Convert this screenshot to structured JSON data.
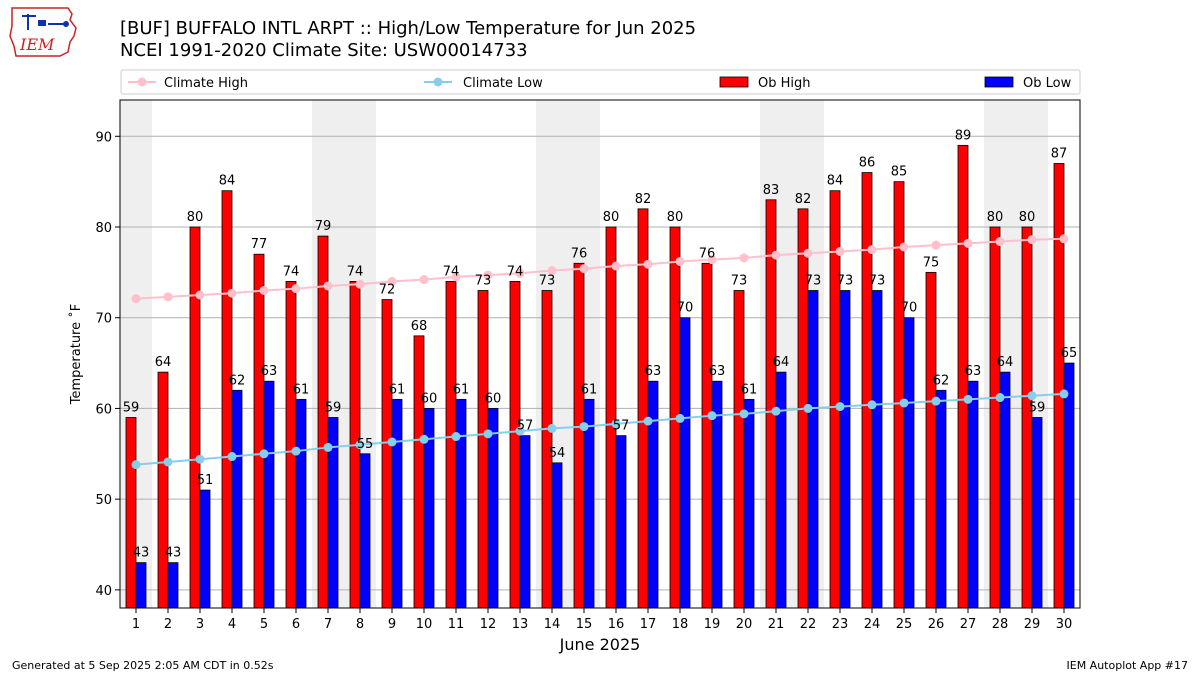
{
  "header": {
    "title_line1": "[BUF] BUFFALO INTL ARPT :: High/Low Temperature for Jun 2025",
    "title_line2": "NCEI 1991-2020 Climate Site: USW00014733",
    "logo_text": "IEM"
  },
  "footer": {
    "generated": "Generated at 5 Sep 2025 2:05 AM CDT in 0.52s",
    "app": "IEM Autoplot App #17"
  },
  "colors": {
    "ob_high": "#ff0000",
    "ob_low": "#0000ff",
    "climate_high": "#ffc0cb",
    "climate_low": "#87ceeb",
    "weekend_band": "#efefef",
    "grid": "#b0b0b0"
  },
  "chart_data": {
    "type": "bar",
    "title": "[BUF] BUFFALO INTL ARPT :: High/Low Temperature for Jun 2025",
    "subtitle": "NCEI 1991-2020 Climate Site: USW00014733",
    "xlabel": "June 2025",
    "ylabel": "Temperature ˚F",
    "ylim": [
      38,
      94
    ],
    "yticks": [
      40,
      50,
      60,
      70,
      80,
      90
    ],
    "grid": true,
    "legend_position": "top",
    "categories": [
      1,
      2,
      3,
      4,
      5,
      6,
      7,
      8,
      9,
      10,
      11,
      12,
      13,
      14,
      15,
      16,
      17,
      18,
      19,
      20,
      21,
      22,
      23,
      24,
      25,
      26,
      27,
      28,
      29,
      30
    ],
    "weekend_days": [
      1,
      7,
      8,
      14,
      15,
      21,
      22,
      28,
      29
    ],
    "series": [
      {
        "name": "Ob High",
        "kind": "bar",
        "values": [
          59,
          64,
          80,
          84,
          77,
          74,
          79,
          74,
          72,
          68,
          74,
          73,
          74,
          73,
          76,
          80,
          82,
          80,
          76,
          73,
          83,
          82,
          84,
          86,
          85,
          75,
          89,
          80,
          80,
          87
        ]
      },
      {
        "name": "Ob Low",
        "kind": "bar",
        "values": [
          43,
          43,
          51,
          62,
          63,
          61,
          59,
          55,
          61,
          60,
          61,
          60,
          57,
          54,
          61,
          57,
          63,
          70,
          63,
          61,
          64,
          73,
          73,
          73,
          70,
          62,
          63,
          64,
          59,
          65
        ]
      },
      {
        "name": "Climate High",
        "kind": "line",
        "values": [
          72.1,
          72.3,
          72.5,
          72.7,
          73.0,
          73.2,
          73.5,
          73.7,
          74.0,
          74.2,
          74.5,
          74.7,
          74.9,
          75.2,
          75.4,
          75.7,
          75.9,
          76.2,
          76.4,
          76.6,
          76.9,
          77.1,
          77.3,
          77.5,
          77.8,
          78.0,
          78.2,
          78.4,
          78.6,
          78.7
        ]
      },
      {
        "name": "Climate Low",
        "kind": "line",
        "values": [
          53.8,
          54.1,
          54.4,
          54.7,
          55.0,
          55.3,
          55.7,
          56.0,
          56.3,
          56.6,
          56.9,
          57.2,
          57.5,
          57.8,
          58.0,
          58.3,
          58.6,
          58.9,
          59.2,
          59.4,
          59.7,
          60.0,
          60.2,
          60.4,
          60.6,
          60.8,
          61.0,
          61.2,
          61.4,
          61.6
        ]
      }
    ]
  }
}
